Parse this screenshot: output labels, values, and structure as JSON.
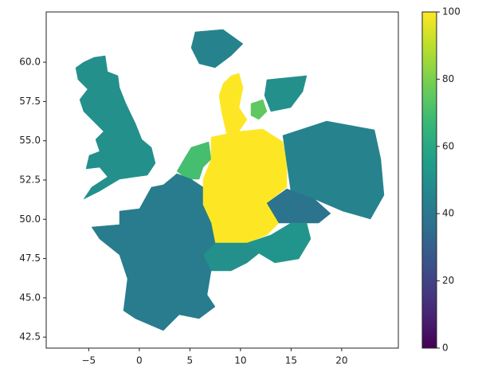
{
  "chart_data": {
    "type": "map",
    "xlim": [
      -9.2,
      25.6
    ],
    "ylim": [
      41.8,
      63.2
    ],
    "xticks": [
      {
        "value": -5,
        "label": "−5"
      },
      0,
      5,
      10,
      15,
      20
    ],
    "yticks": [
      {
        "value": 60,
        "label": "60.0"
      },
      57.5,
      {
        "value": 55,
        "label": "55.0"
      },
      52.5,
      {
        "value": 50,
        "label": "50.0"
      },
      47.5,
      {
        "value": 45,
        "label": "45.0"
      },
      42.5
    ],
    "colorbar": {
      "lim": [
        0,
        100
      ],
      "ticks": [
        0,
        20,
        40,
        60,
        80,
        100
      ]
    },
    "values": [
      50,
      45,
      100,
      75,
      50,
      70,
      42,
      100,
      45,
      38,
      52,
      50,
      42
    ]
  }
}
